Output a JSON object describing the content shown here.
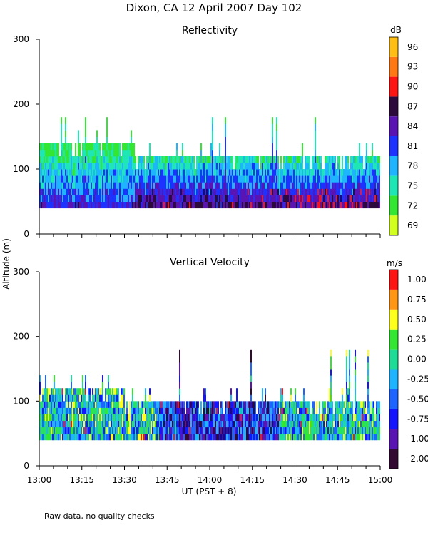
{
  "title": "Dixon, CA 12 April 2007  Day 102",
  "ylabel": "Altitude (m)",
  "xlabel": "UT  (PST + 8)",
  "footer": "Raw data, no quality checks",
  "chart_data": [
    {
      "type": "heatmap",
      "title": "Reflectivity",
      "colorbar_label": "dB",
      "colorbar_ticks": [
        "69",
        "72",
        "75",
        "78",
        "81",
        "84",
        "87",
        "90",
        "93",
        "96"
      ],
      "colorbar_colors": [
        "#d2ff1e",
        "#32e632",
        "#1ee6b4",
        "#1eb4ff",
        "#1e32ff",
        "#5a14b4",
        "#2d0a3c",
        "#ff1414",
        "#ff7814",
        "#ffbe14"
      ],
      "x_ticks": [
        "13:00",
        "13:15",
        "13:30",
        "13:45",
        "14:00",
        "14:15",
        "14:30",
        "14:45",
        "15:00"
      ],
      "xlim": [
        "13:00",
        "15:00"
      ],
      "y_ticks": [
        "0",
        "100",
        "200",
        "300"
      ],
      "ylim": [
        0,
        300
      ],
      "data_bottom_altitude": 40,
      "approx_echo_top_altitude": 140,
      "approx_max_echo_altitude": 180
    },
    {
      "type": "heatmap",
      "title": "Vertical Velocity",
      "colorbar_label": "m/s",
      "colorbar_ticks": [
        "-2.00",
        "-1.00",
        "-0.75",
        "-0.50",
        "-0.25",
        "0.00",
        "0.25",
        "0.50",
        "0.75",
        "1.00"
      ],
      "colorbar_colors": [
        "#320a32",
        "#5a14b4",
        "#1414ff",
        "#1e64ff",
        "#1eb4ff",
        "#1edc96",
        "#32e632",
        "#ffff1e",
        "#ff9614",
        "#ff1414"
      ],
      "x_ticks": [
        "13:00",
        "13:15",
        "13:30",
        "13:45",
        "14:00",
        "14:15",
        "14:30",
        "14:45",
        "15:00"
      ],
      "xlim": [
        "13:00",
        "15:00"
      ],
      "y_ticks": [
        "0",
        "100",
        "200",
        "300"
      ],
      "ylim": [
        0,
        300
      ],
      "data_bottom_altitude": 40,
      "approx_echo_top_altitude": 120,
      "approx_max_echo_altitude": 180
    }
  ]
}
